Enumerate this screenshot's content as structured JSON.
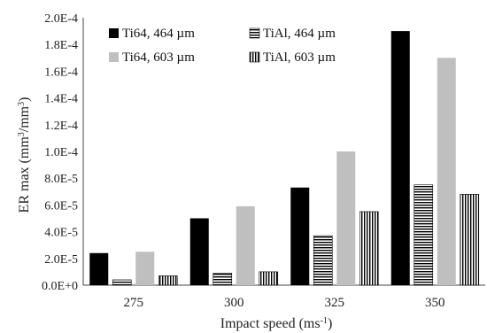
{
  "chart_data": {
    "type": "bar",
    "categories": [
      "275",
      "300",
      "325",
      "350"
    ],
    "series": [
      {
        "name": "Ti64, 464 µm",
        "values": [
          2.4e-05,
          5e-05,
          7.3e-05,
          0.00019
        ],
        "fill": "#000000",
        "pattern": "solid"
      },
      {
        "name": "TiAl, 464 µm",
        "values": [
          4e-06,
          9e-06,
          3.7e-05,
          7.5e-05
        ],
        "fill": "#000000",
        "pattern": "horizontal-lines"
      },
      {
        "name": "Ti64, 603 µm",
        "values": [
          2.5e-05,
          5.9e-05,
          0.0001,
          0.00017
        ],
        "fill": "#bfbfbf",
        "pattern": "solid"
      },
      {
        "name": "TiAl, 603 µm",
        "values": [
          7e-06,
          1e-05,
          5.5e-05,
          6.8e-05
        ],
        "fill": "#000000",
        "pattern": "vertical-lines"
      }
    ],
    "ylim": [
      0,
      0.0002
    ],
    "yticks": [
      "0.0E+0",
      "2.0E-5",
      "4.0E-5",
      "6.0E-5",
      "8.0E-5",
      "1.0E-4",
      "1.2E-4",
      "1.4E-4",
      "1.6E-4",
      "1.8E-4",
      "2.0E-4"
    ],
    "xlabel_main": "Impact speed (ms",
    "xlabel_sup": "-1",
    "xlabel_end": ")",
    "ylabel_parts": [
      "ER max (mm",
      "3",
      "/mm",
      "3",
      ")"
    ],
    "legend_position": "top",
    "grid": false
  }
}
